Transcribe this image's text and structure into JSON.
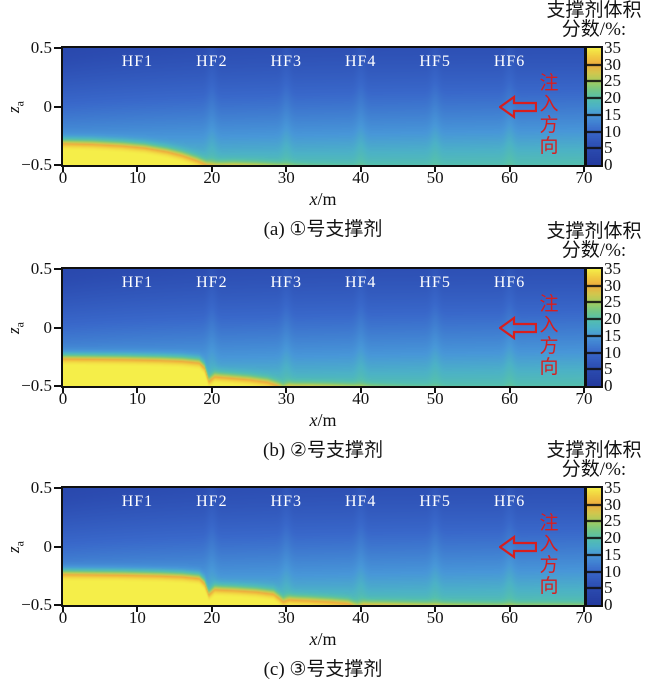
{
  "chart_data": {
    "type": "heatmap",
    "x_axis": {
      "label_var": "x",
      "label_unit": "/m",
      "range": [
        0,
        70
      ],
      "ticks": [
        0,
        10,
        20,
        30,
        40,
        50,
        60,
        70
      ]
    },
    "y_axis": {
      "label_var": "z",
      "label_sub": "a",
      "range": [
        -0.5,
        0.5
      ],
      "ticks": [
        {
          "value": 0.5,
          "label": "0.5"
        },
        {
          "value": 0,
          "label": "0"
        },
        {
          "value": -0.5,
          "label": "−0.5"
        }
      ]
    },
    "colorbar": {
      "title_line1": "支撑剂体积",
      "title_line2": "分数/%:",
      "range": [
        0,
        35
      ],
      "ticks": [
        35,
        30,
        25,
        20,
        15,
        10,
        5,
        0
      ]
    },
    "fractures": [
      {
        "label": "HF1",
        "x": 10
      },
      {
        "label": "HF2",
        "x": 20
      },
      {
        "label": "HF3",
        "x": 30
      },
      {
        "label": "HF4",
        "x": 40
      },
      {
        "label": "HF5",
        "x": 50
      },
      {
        "label": "HF6",
        "x": 60
      }
    ],
    "annotation": {
      "text": "注入方向",
      "icon": "left-arrow",
      "color": "#d81e1e"
    },
    "colormap_stops": [
      [
        0,
        "#243a9e"
      ],
      [
        5,
        "#2b4bb0"
      ],
      [
        10,
        "#3968ca"
      ],
      [
        15,
        "#4897d8"
      ],
      [
        17.5,
        "#4cb2c6"
      ],
      [
        20,
        "#55c0ad"
      ],
      [
        22.5,
        "#74c685"
      ],
      [
        25,
        "#a5cd5f"
      ],
      [
        27.5,
        "#d2c74d"
      ],
      [
        30,
        "#eeab3e"
      ],
      [
        32.5,
        "#f1cb40"
      ],
      [
        35,
        "#f5ee49"
      ]
    ],
    "field_model": {
      "base": 6.0,
      "vertical_gain": 12.4,
      "vertical_power": 1.25,
      "x_gain": 1.3,
      "plume_amp": 1.9,
      "plume_decay": 16,
      "seam_positions": [
        20,
        30,
        40,
        50,
        60
      ],
      "seam_amp": 1.1,
      "seam_width": 0.7,
      "bed_value": 35.6,
      "bed_edge_width": 0.021
    },
    "panels": [
      {
        "id": "a",
        "caption": "(a) ①号支撑剂",
        "bed_top_profile": [
          [
            0,
            -0.3
          ],
          [
            4,
            -0.306
          ],
          [
            8,
            -0.32
          ],
          [
            11,
            -0.338
          ],
          [
            14,
            -0.372
          ],
          [
            16,
            -0.405
          ],
          [
            18,
            -0.45
          ],
          [
            19.3,
            -0.488
          ],
          [
            20.5,
            -0.498
          ],
          [
            23,
            -0.495
          ],
          [
            26,
            -0.502
          ],
          [
            29,
            -0.514
          ],
          [
            33,
            -0.532
          ],
          [
            40,
            -0.552
          ],
          [
            50,
            -0.572
          ],
          [
            70,
            -0.6
          ]
        ]
      },
      {
        "id": "b",
        "caption": "(b) ②号支撑剂",
        "bed_top_profile": [
          [
            0,
            -0.25
          ],
          [
            8,
            -0.256
          ],
          [
            13,
            -0.263
          ],
          [
            16,
            -0.271
          ],
          [
            18.3,
            -0.286
          ],
          [
            19.0,
            -0.33
          ],
          [
            19.6,
            -0.452
          ],
          [
            20.4,
            -0.408
          ],
          [
            22,
            -0.416
          ],
          [
            25,
            -0.433
          ],
          [
            27.5,
            -0.456
          ],
          [
            29.0,
            -0.49
          ],
          [
            29.6,
            -0.512
          ],
          [
            30.4,
            -0.496
          ],
          [
            33,
            -0.498
          ],
          [
            36,
            -0.503
          ],
          [
            39,
            -0.511
          ],
          [
            42,
            -0.522
          ],
          [
            46,
            -0.536
          ],
          [
            52,
            -0.553
          ],
          [
            60,
            -0.57
          ],
          [
            70,
            -0.586
          ]
        ]
      },
      {
        "id": "c",
        "caption": "(c) ③号支撑剂",
        "bed_top_profile": [
          [
            0,
            -0.22
          ],
          [
            8,
            -0.226
          ],
          [
            13,
            -0.233
          ],
          [
            16,
            -0.241
          ],
          [
            18.3,
            -0.256
          ],
          [
            19.0,
            -0.3
          ],
          [
            19.6,
            -0.402
          ],
          [
            20.4,
            -0.354
          ],
          [
            23,
            -0.361
          ],
          [
            26,
            -0.374
          ],
          [
            28.3,
            -0.393
          ],
          [
            29.0,
            -0.428
          ],
          [
            29.6,
            -0.462
          ],
          [
            30.4,
            -0.444
          ],
          [
            33,
            -0.451
          ],
          [
            36,
            -0.463
          ],
          [
            38.3,
            -0.476
          ],
          [
            39.0,
            -0.494
          ],
          [
            39.6,
            -0.508
          ],
          [
            40.4,
            -0.492
          ],
          [
            43,
            -0.494
          ],
          [
            46,
            -0.499
          ],
          [
            49,
            -0.504
          ],
          [
            53,
            -0.511
          ],
          [
            58,
            -0.517
          ],
          [
            65,
            -0.519
          ],
          [
            70,
            -0.523
          ]
        ]
      }
    ],
    "text_color": "#111111"
  }
}
